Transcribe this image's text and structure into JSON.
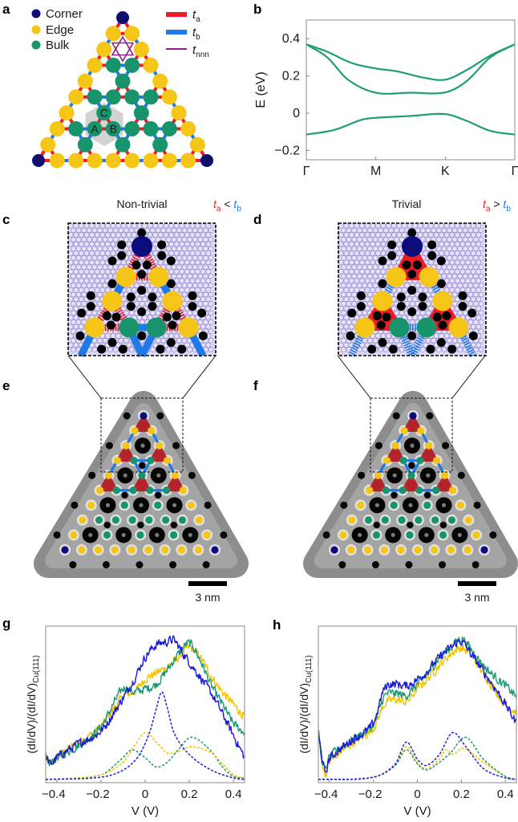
{
  "panel_labels": {
    "a": "a",
    "b": "b",
    "c": "c",
    "d": "d",
    "e": "e",
    "f": "f",
    "g": "g",
    "h": "h"
  },
  "panel_a": {
    "legend": [
      {
        "label": "Corner",
        "color": "#0c0c7a"
      },
      {
        "label": "Edge",
        "color": "#f5c518"
      },
      {
        "label": "Bulk",
        "color": "#17946c"
      }
    ],
    "hopping_legend": [
      {
        "symbol": "t",
        "sub": "a",
        "color": "#ee1c24"
      },
      {
        "symbol": "t",
        "sub": "b",
        "color": "#1e7ae8"
      },
      {
        "symbol": "t",
        "sub": "nnn",
        "color": "#8e1f8e"
      }
    ],
    "corner_labels": [
      "A",
      "B",
      "C"
    ],
    "cell_labels": [
      "A",
      "B",
      "C"
    ],
    "cell_highlight_color": "#d3d3d3"
  },
  "panel_c": {
    "title": "Non-trivial",
    "relation": {
      "left": "t",
      "left_sub": "a",
      "op": " < ",
      "right": "t",
      "right_sub": "b"
    }
  },
  "panel_d": {
    "title": "Trivial",
    "relation": {
      "left": "t",
      "left_sub": "a",
      "op": " > ",
      "right": "t",
      "right_sub": "b"
    }
  },
  "panel_e": {
    "scale_bar": "3 nm"
  },
  "panel_f": {
    "scale_bar": "3 nm"
  },
  "chart_data": [
    {
      "panel": "b",
      "type": "line",
      "title": "",
      "xlabel": "",
      "ylabel": "E (eV)",
      "xlim": [
        0,
        3
      ],
      "ylim": [
        -0.25,
        0.5
      ],
      "xticks": [
        {
          "value": 0,
          "label": "Γ"
        },
        {
          "value": 1,
          "label": "M"
        },
        {
          "value": 2,
          "label": "K"
        },
        {
          "value": 3,
          "label": "Γ"
        }
      ],
      "yticks": [
        {
          "value": -0.2,
          "label": "−0.2"
        },
        {
          "value": 0,
          "label": "0"
        },
        {
          "value": 0.2,
          "label": "0.2"
        },
        {
          "value": 0.4,
          "label": "0.4"
        }
      ],
      "series": [
        {
          "color": "#1f9e72",
          "style": "smooth",
          "points": [
            [
              0,
              0.37
            ],
            [
              0.3,
              0.33
            ],
            [
              0.65,
              0.27
            ],
            [
              1,
              0.24
            ],
            [
              1.3,
              0.225
            ],
            [
              1.7,
              0.19
            ],
            [
              2,
              0.18
            ],
            [
              2.3,
              0.23
            ],
            [
              2.65,
              0.31
            ],
            [
              3,
              0.37
            ]
          ]
        },
        {
          "color": "#1f9e72",
          "style": "smooth",
          "points": [
            [
              0,
              0.37
            ],
            [
              0.3,
              0.3
            ],
            [
              0.6,
              0.18
            ],
            [
              1,
              0.11
            ],
            [
              1.5,
              0.11
            ],
            [
              2,
              0.112
            ],
            [
              2.3,
              0.17
            ],
            [
              2.65,
              0.3
            ],
            [
              3,
              0.37
            ]
          ]
        },
        {
          "color": "#1f9e72",
          "style": "smooth",
          "points": [
            [
              0,
              -0.115
            ],
            [
              0.4,
              -0.09
            ],
            [
              0.8,
              -0.035
            ],
            [
              1,
              -0.025
            ],
            [
              1.5,
              -0.015
            ],
            [
              2,
              -0.005
            ],
            [
              2.3,
              -0.04
            ],
            [
              2.65,
              -0.095
            ],
            [
              3,
              -0.115
            ]
          ]
        }
      ]
    },
    {
      "panel": "g",
      "type": "line",
      "title": "",
      "xlabel": "V (V)",
      "ylabel": "(dI/dV)/(dI/dV)",
      "ylabel_sub": "Cu(111)",
      "xlim": [
        -0.45,
        0.45
      ],
      "ylim": [
        0,
        1
      ],
      "xticks": [
        {
          "value": -0.4,
          "label": "−0.4"
        },
        {
          "value": -0.2,
          "label": "−0.2"
        },
        {
          "value": 0,
          "label": "0"
        },
        {
          "value": 0.2,
          "label": "0.2"
        },
        {
          "value": 0.4,
          "label": "0.4"
        }
      ],
      "yticks": [],
      "series": [
        {
          "color": "#f2c200",
          "style": "measured",
          "points": [
            [
              -0.45,
              0.15
            ],
            [
              -0.43,
              0.12
            ],
            [
              -0.4,
              0.16
            ],
            [
              -0.3,
              0.26
            ],
            [
              -0.2,
              0.36
            ],
            [
              -0.1,
              0.55
            ],
            [
              -0.05,
              0.58
            ],
            [
              0,
              0.66
            ],
            [
              0.05,
              0.7
            ],
            [
              0.1,
              0.74
            ],
            [
              0.15,
              0.8
            ],
            [
              0.2,
              0.86
            ],
            [
              0.25,
              0.8
            ],
            [
              0.3,
              0.68
            ],
            [
              0.35,
              0.58
            ],
            [
              0.4,
              0.5
            ],
            [
              0.45,
              0.42
            ]
          ]
        },
        {
          "color": "#1a9a74",
          "style": "measured",
          "points": [
            [
              -0.45,
              0.16
            ],
            [
              -0.43,
              0.12
            ],
            [
              -0.4,
              0.16
            ],
            [
              -0.3,
              0.24
            ],
            [
              -0.2,
              0.36
            ],
            [
              -0.1,
              0.6
            ],
            [
              -0.05,
              0.58
            ],
            [
              0,
              0.6
            ],
            [
              0.05,
              0.63
            ],
            [
              0.1,
              0.72
            ],
            [
              0.15,
              0.82
            ],
            [
              0.2,
              0.89
            ],
            [
              0.25,
              0.78
            ],
            [
              0.3,
              0.62
            ],
            [
              0.35,
              0.5
            ],
            [
              0.4,
              0.38
            ],
            [
              0.45,
              0.32
            ]
          ]
        },
        {
          "color": "#1a1adb",
          "style": "measured",
          "points": [
            [
              -0.45,
              0.17
            ],
            [
              -0.43,
              0.12
            ],
            [
              -0.4,
              0.16
            ],
            [
              -0.3,
              0.25
            ],
            [
              -0.2,
              0.33
            ],
            [
              -0.1,
              0.54
            ],
            [
              -0.05,
              0.66
            ],
            [
              0,
              0.8
            ],
            [
              0.05,
              0.88
            ],
            [
              0.1,
              0.9
            ],
            [
              0.13,
              0.91
            ],
            [
              0.17,
              0.83
            ],
            [
              0.2,
              0.77
            ],
            [
              0.3,
              0.57
            ],
            [
              0.35,
              0.44
            ],
            [
              0.4,
              0.3
            ],
            [
              0.45,
              0.16
            ]
          ]
        },
        {
          "color": "#1a9a74",
          "style": "dashed",
          "points": [
            [
              -0.45,
              0.02
            ],
            [
              -0.2,
              0.05
            ],
            [
              -0.1,
              0.16
            ],
            [
              -0.06,
              0.21
            ],
            [
              0,
              0.16
            ],
            [
              0.05,
              0.1
            ],
            [
              0.1,
              0.13
            ],
            [
              0.15,
              0.21
            ],
            [
              0.21,
              0.29
            ],
            [
              0.3,
              0.2
            ],
            [
              0.35,
              0.1
            ],
            [
              0.4,
              0.04
            ],
            [
              0.45,
              0.03
            ]
          ]
        },
        {
          "color": "#f2c200",
          "style": "dashed",
          "points": [
            [
              -0.45,
              0.02
            ],
            [
              -0.2,
              0.05
            ],
            [
              -0.1,
              0.13
            ],
            [
              -0.05,
              0.23
            ],
            [
              0,
              0.32
            ],
            [
              0.05,
              0.26
            ],
            [
              0.1,
              0.19
            ],
            [
              0.15,
              0.2
            ],
            [
              0.21,
              0.23
            ],
            [
              0.3,
              0.19
            ],
            [
              0.35,
              0.12
            ],
            [
              0.4,
              0.05
            ],
            [
              0.45,
              0.03
            ]
          ]
        },
        {
          "color": "#1a1adb",
          "style": "dashed",
          "points": [
            [
              -0.45,
              0.02
            ],
            [
              -0.2,
              0.035
            ],
            [
              -0.1,
              0.08
            ],
            [
              -0.03,
              0.17
            ],
            [
              0.02,
              0.32
            ],
            [
              0.05,
              0.47
            ],
            [
              0.075,
              0.58
            ],
            [
              0.1,
              0.48
            ],
            [
              0.13,
              0.32
            ],
            [
              0.2,
              0.18
            ],
            [
              0.3,
              0.08
            ],
            [
              0.4,
              0.03
            ],
            [
              0.45,
              0.02
            ]
          ]
        }
      ]
    },
    {
      "panel": "h",
      "type": "line",
      "title": "",
      "xlabel": "V (V)",
      "ylabel": "(dI/dV)/(dI/dV)",
      "ylabel_sub": "Cu(111)",
      "xlim": [
        -0.45,
        0.45
      ],
      "ylim": [
        0,
        1
      ],
      "xticks": [
        {
          "value": -0.4,
          "label": "−0.4"
        },
        {
          "value": -0.2,
          "label": "−0.2"
        },
        {
          "value": 0,
          "label": "0"
        },
        {
          "value": 0.2,
          "label": "0.2"
        },
        {
          "value": 0.4,
          "label": "0.4"
        }
      ],
      "yticks": [],
      "series": [
        {
          "color": "#f2c200",
          "style": "measured",
          "points": [
            [
              -0.45,
              0.28
            ],
            [
              -0.42,
              0.06
            ],
            [
              -0.4,
              0.13
            ],
            [
              -0.3,
              0.25
            ],
            [
              -0.2,
              0.35
            ],
            [
              -0.15,
              0.5
            ],
            [
              -0.1,
              0.53
            ],
            [
              -0.05,
              0.52
            ],
            [
              0,
              0.6
            ],
            [
              0.05,
              0.67
            ],
            [
              0.1,
              0.75
            ],
            [
              0.15,
              0.82
            ],
            [
              0.2,
              0.86
            ],
            [
              0.25,
              0.8
            ],
            [
              0.3,
              0.7
            ],
            [
              0.35,
              0.6
            ],
            [
              0.4,
              0.5
            ],
            [
              0.45,
              0.45
            ]
          ]
        },
        {
          "color": "#1a9a74",
          "style": "measured",
          "points": [
            [
              -0.45,
              0.32
            ],
            [
              -0.42,
              0.08
            ],
            [
              -0.4,
              0.16
            ],
            [
              -0.3,
              0.27
            ],
            [
              -0.2,
              0.37
            ],
            [
              -0.15,
              0.55
            ],
            [
              -0.1,
              0.57
            ],
            [
              -0.05,
              0.56
            ],
            [
              0,
              0.63
            ],
            [
              0.05,
              0.7
            ],
            [
              0.1,
              0.8
            ],
            [
              0.15,
              0.86
            ],
            [
              0.2,
              0.92
            ],
            [
              0.25,
              0.84
            ],
            [
              0.3,
              0.75
            ],
            [
              0.35,
              0.68
            ],
            [
              0.4,
              0.62
            ],
            [
              0.45,
              0.55
            ]
          ]
        },
        {
          "color": "#1a1adb",
          "style": "measured",
          "points": [
            [
              -0.45,
              0.3
            ],
            [
              -0.42,
              0.07
            ],
            [
              -0.4,
              0.15
            ],
            [
              -0.3,
              0.27
            ],
            [
              -0.2,
              0.38
            ],
            [
              -0.15,
              0.6
            ],
            [
              -0.1,
              0.63
            ],
            [
              -0.05,
              0.62
            ],
            [
              0,
              0.66
            ],
            [
              0.05,
              0.72
            ],
            [
              0.1,
              0.8
            ],
            [
              0.15,
              0.86
            ],
            [
              0.2,
              0.9
            ],
            [
              0.25,
              0.81
            ],
            [
              0.3,
              0.71
            ],
            [
              0.35,
              0.61
            ],
            [
              0.4,
              0.5
            ],
            [
              0.45,
              0.38
            ]
          ]
        },
        {
          "color": "#f2c200",
          "style": "dashed",
          "points": [
            [
              -0.45,
              0.02
            ],
            [
              -0.2,
              0.035
            ],
            [
              -0.1,
              0.11
            ],
            [
              -0.05,
              0.23
            ],
            [
              0,
              0.13
            ],
            [
              0.04,
              0.09
            ],
            [
              0.1,
              0.15
            ],
            [
              0.13,
              0.21
            ],
            [
              0.16,
              0.18
            ],
            [
              0.21,
              0.22
            ],
            [
              0.3,
              0.13
            ],
            [
              0.4,
              0.04
            ],
            [
              0.45,
              0.02
            ]
          ]
        },
        {
          "color": "#1a9a74",
          "style": "dashed",
          "points": [
            [
              -0.45,
              0.02
            ],
            [
              -0.2,
              0.035
            ],
            [
              -0.1,
              0.11
            ],
            [
              -0.05,
              0.21
            ],
            [
              0,
              0.12
            ],
            [
              0.04,
              0.08
            ],
            [
              0.1,
              0.13
            ],
            [
              0.15,
              0.19
            ],
            [
              0.22,
              0.29
            ],
            [
              0.3,
              0.15
            ],
            [
              0.4,
              0.04
            ],
            [
              0.45,
              0.02
            ]
          ]
        },
        {
          "color": "#1a1adb",
          "style": "dashed",
          "points": [
            [
              -0.45,
              0.02
            ],
            [
              -0.2,
              0.035
            ],
            [
              -0.1,
              0.12
            ],
            [
              -0.05,
              0.26
            ],
            [
              0,
              0.15
            ],
            [
              0.04,
              0.11
            ],
            [
              0.1,
              0.18
            ],
            [
              0.16,
              0.32
            ],
            [
              0.22,
              0.23
            ],
            [
              0.3,
              0.09
            ],
            [
              0.4,
              0.03
            ],
            [
              0.45,
              0.02
            ]
          ]
        }
      ]
    }
  ]
}
